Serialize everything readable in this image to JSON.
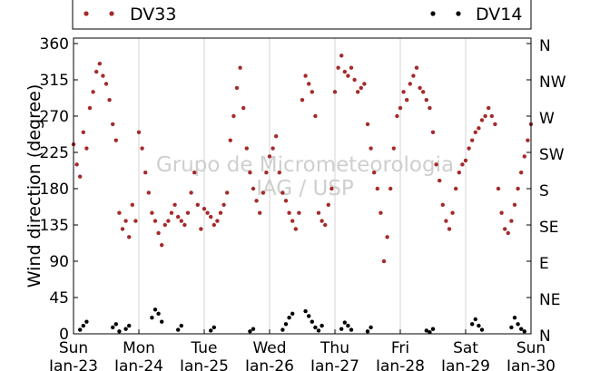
{
  "chart_data": {
    "type": "scatter",
    "ylabel": "Wind direction (degree)",
    "xlabel": "",
    "ylim": [
      0,
      360
    ],
    "xlim": [
      0,
      7
    ],
    "yticks": [
      0,
      45,
      90,
      135,
      180,
      225,
      270,
      315,
      360
    ],
    "ytick_labels": [
      "0",
      "45",
      "90",
      "135",
      "180",
      "225",
      "270",
      "315",
      "360"
    ],
    "right_ticks": [
      0,
      45,
      90,
      135,
      180,
      225,
      270,
      315,
      360
    ],
    "right_tick_labels": [
      "N",
      "NE",
      "E",
      "SE",
      "S",
      "SW",
      "W",
      "NW",
      "N"
    ],
    "xticks": [
      0,
      1,
      2,
      3,
      4,
      5,
      6,
      7
    ],
    "xtick_labels": [
      {
        "day": "Sun",
        "date": "Jan-23"
      },
      {
        "day": "Mon",
        "date": "Jan-24"
      },
      {
        "day": "Tue",
        "date": "Jan-25"
      },
      {
        "day": "Wed",
        "date": "Jan-26"
      },
      {
        "day": "Thu",
        "date": "Jan-27"
      },
      {
        "day": "Fri",
        "date": "Jan-28"
      },
      {
        "day": "Sat",
        "date": "Jan-29"
      },
      {
        "day": "Sun",
        "date": "Jan-30"
      }
    ],
    "grid": "vertical",
    "legend_placement": "top",
    "watermark": [
      "Grupo de Micrometeorologia",
      "IAG / USP"
    ],
    "series": [
      {
        "name": "DV33",
        "color": "#a52a2a",
        "x": [
          0.0,
          0.05,
          0.1,
          0.15,
          0.2,
          0.25,
          0.3,
          0.35,
          0.4,
          0.45,
          0.5,
          0.55,
          0.6,
          0.65,
          0.7,
          0.75,
          0.8,
          0.85,
          0.9,
          0.95,
          1.0,
          1.05,
          1.1,
          1.15,
          1.2,
          1.25,
          1.3,
          1.35,
          1.4,
          1.45,
          1.5,
          1.55,
          1.6,
          1.65,
          1.7,
          1.75,
          1.8,
          1.85,
          1.9,
          1.95,
          2.0,
          2.05,
          2.1,
          2.15,
          2.2,
          2.25,
          2.3,
          2.35,
          2.4,
          2.45,
          2.5,
          2.55,
          2.6,
          2.65,
          2.7,
          2.75,
          2.8,
          2.85,
          2.9,
          2.95,
          3.0,
          3.05,
          3.1,
          3.15,
          3.2,
          3.25,
          3.3,
          3.35,
          3.4,
          3.45,
          3.5,
          3.55,
          3.6,
          3.65,
          3.7,
          3.75,
          3.8,
          3.85,
          3.9,
          3.95,
          4.0,
          4.05,
          4.1,
          4.15,
          4.2,
          4.25,
          4.3,
          4.35,
          4.4,
          4.45,
          4.5,
          4.55,
          4.6,
          4.65,
          4.7,
          4.75,
          4.8,
          4.85,
          4.9,
          4.95,
          5.0,
          5.05,
          5.1,
          5.15,
          5.2,
          5.25,
          5.3,
          5.35,
          5.4,
          5.45,
          5.5,
          5.55,
          5.6,
          5.65,
          5.7,
          5.75,
          5.8,
          5.85,
          5.9,
          5.95,
          6.0,
          6.05,
          6.1,
          6.15,
          6.2,
          6.25,
          6.3,
          6.35,
          6.4,
          6.45,
          6.5,
          6.55,
          6.6,
          6.65,
          6.7,
          6.75,
          6.8,
          6.85,
          6.9,
          6.95,
          7.0
        ],
        "y": [
          235,
          210,
          195,
          250,
          230,
          280,
          300,
          325,
          335,
          320,
          310,
          290,
          260,
          240,
          150,
          130,
          140,
          120,
          160,
          140,
          250,
          230,
          200,
          175,
          150,
          140,
          125,
          110,
          135,
          140,
          150,
          160,
          145,
          140,
          135,
          150,
          175,
          200,
          160,
          130,
          155,
          150,
          145,
          135,
          140,
          150,
          160,
          175,
          240,
          270,
          305,
          330,
          280,
          230,
          200,
          180,
          165,
          150,
          175,
          200,
          220,
          230,
          245,
          200,
          175,
          165,
          150,
          140,
          130,
          150,
          290,
          320,
          310,
          300,
          270,
          150,
          140,
          135,
          160,
          180,
          300,
          330,
          345,
          325,
          320,
          330,
          315,
          300,
          305,
          310,
          260,
          230,
          200,
          180,
          150,
          90,
          120,
          180,
          230,
          270,
          280,
          300,
          290,
          310,
          320,
          330,
          305,
          300,
          290,
          280,
          250,
          210,
          190,
          160,
          140,
          130,
          150,
          180,
          200,
          210,
          215,
          230,
          240,
          250,
          255,
          265,
          270,
          280,
          270,
          260,
          180,
          150,
          130,
          125,
          140,
          160,
          180,
          200,
          220,
          240,
          260
        ]
      },
      {
        "name": "DV14",
        "color": "#000000",
        "x": [
          0.1,
          0.15,
          0.2,
          0.6,
          0.65,
          0.7,
          0.8,
          0.85,
          1.2,
          1.25,
          1.3,
          1.35,
          1.6,
          1.65,
          2.1,
          2.15,
          2.7,
          2.75,
          3.2,
          3.25,
          3.3,
          3.35,
          3.55,
          3.6,
          3.65,
          3.7,
          3.75,
          3.8,
          4.1,
          4.15,
          4.2,
          4.25,
          4.5,
          4.55,
          5.4,
          5.45,
          5.5,
          6.1,
          6.15,
          6.2,
          6.25,
          6.7,
          6.75,
          6.8,
          6.85,
          6.9
        ],
        "y": [
          5,
          10,
          15,
          8,
          12,
          3,
          6,
          10,
          20,
          30,
          25,
          15,
          5,
          10,
          4,
          8,
          3,
          6,
          5,
          12,
          20,
          25,
          28,
          22,
          15,
          8,
          4,
          10,
          6,
          14,
          10,
          5,
          3,
          8,
          4,
          2,
          6,
          12,
          18,
          10,
          5,
          8,
          20,
          12,
          6,
          3
        ]
      }
    ]
  }
}
